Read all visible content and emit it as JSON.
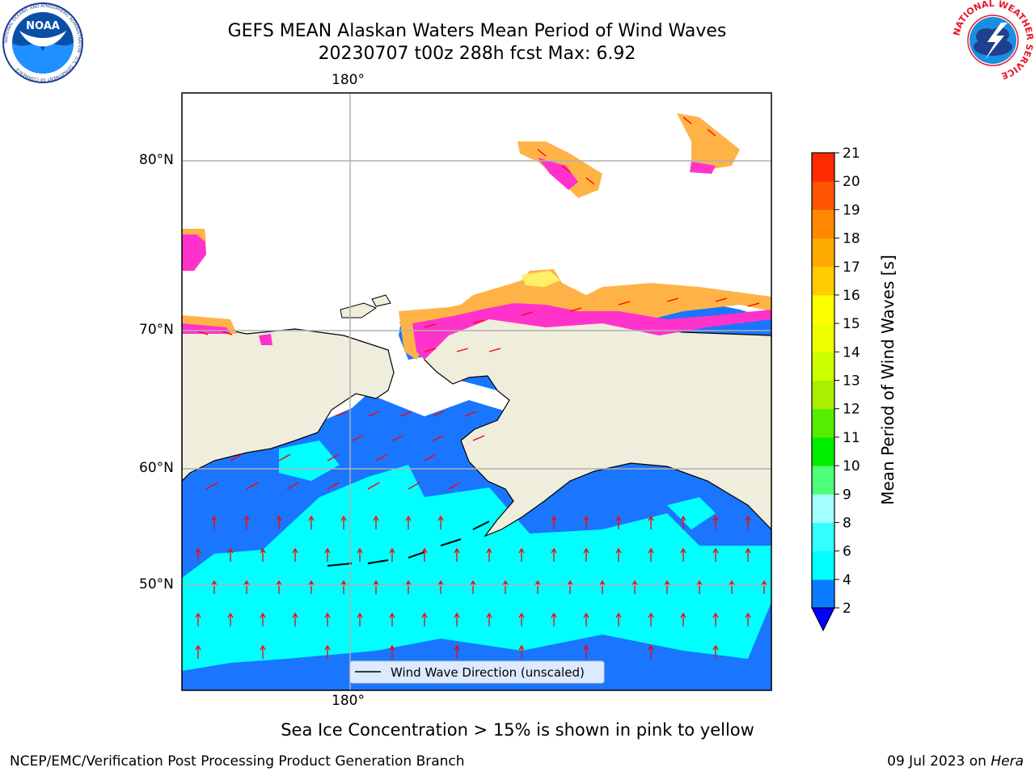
{
  "title_line1": "GEFS MEAN Alaskan Waters Mean Period of Wind Waves",
  "title_line2": "20230707 t00z 288h fcst   Max: 6.92",
  "map": {
    "lon_label_top": "180°",
    "lon_label_bottom": "180°",
    "lat_labels": [
      "80°N",
      "70°N",
      "60°N",
      "50°N"
    ],
    "legend_label": "Wind Wave Direction (unscaled)",
    "colors": {
      "land": "#efeddb",
      "ice_pink": "#ff33cc",
      "ice_orange": "#ffb347",
      "ice_yellow": "#fff066",
      "wave_blue": "#1a75ff",
      "wave_cyan": "#00ffff",
      "arrow": "#ff0000"
    }
  },
  "colorbar": {
    "title": "Mean Period of Wind Waves [s]",
    "tick_labels": [
      "2",
      "4",
      "6",
      "8",
      "9",
      "10",
      "11",
      "12",
      "13",
      "14",
      "15",
      "16",
      "17",
      "18",
      "19",
      "20",
      "21"
    ],
    "colors": [
      "#0a7cff",
      "#00ffff",
      "#33ffff",
      "#a3ffff",
      "#4dff7a",
      "#00ee00",
      "#55ee00",
      "#aaee00",
      "#ccff00",
      "#eeff00",
      "#ffff00",
      "#ffcc00",
      "#ffaa00",
      "#ff8800",
      "#ff5500",
      "#ff2a00",
      "#ff0000"
    ],
    "under_color": "#0000ff"
  },
  "sea_ice_note": "Sea Ice Concentration > 15% is shown in pink to yellow",
  "footer_left": "NCEP/EMC/Verification Post Processing Product Generation Branch",
  "footer_right_date": "09 Jul 2023 on ",
  "footer_right_host": "Hera",
  "logos": {
    "noaa_text": "NOAA",
    "noaa_ring": "NATIONAL OCEANIC AND ATMOSPHERIC ADMINISTRATION · U.S. DEPARTMENT OF COMMERCE",
    "nws_ring": "NATIONAL WEATHER SERVICE"
  }
}
